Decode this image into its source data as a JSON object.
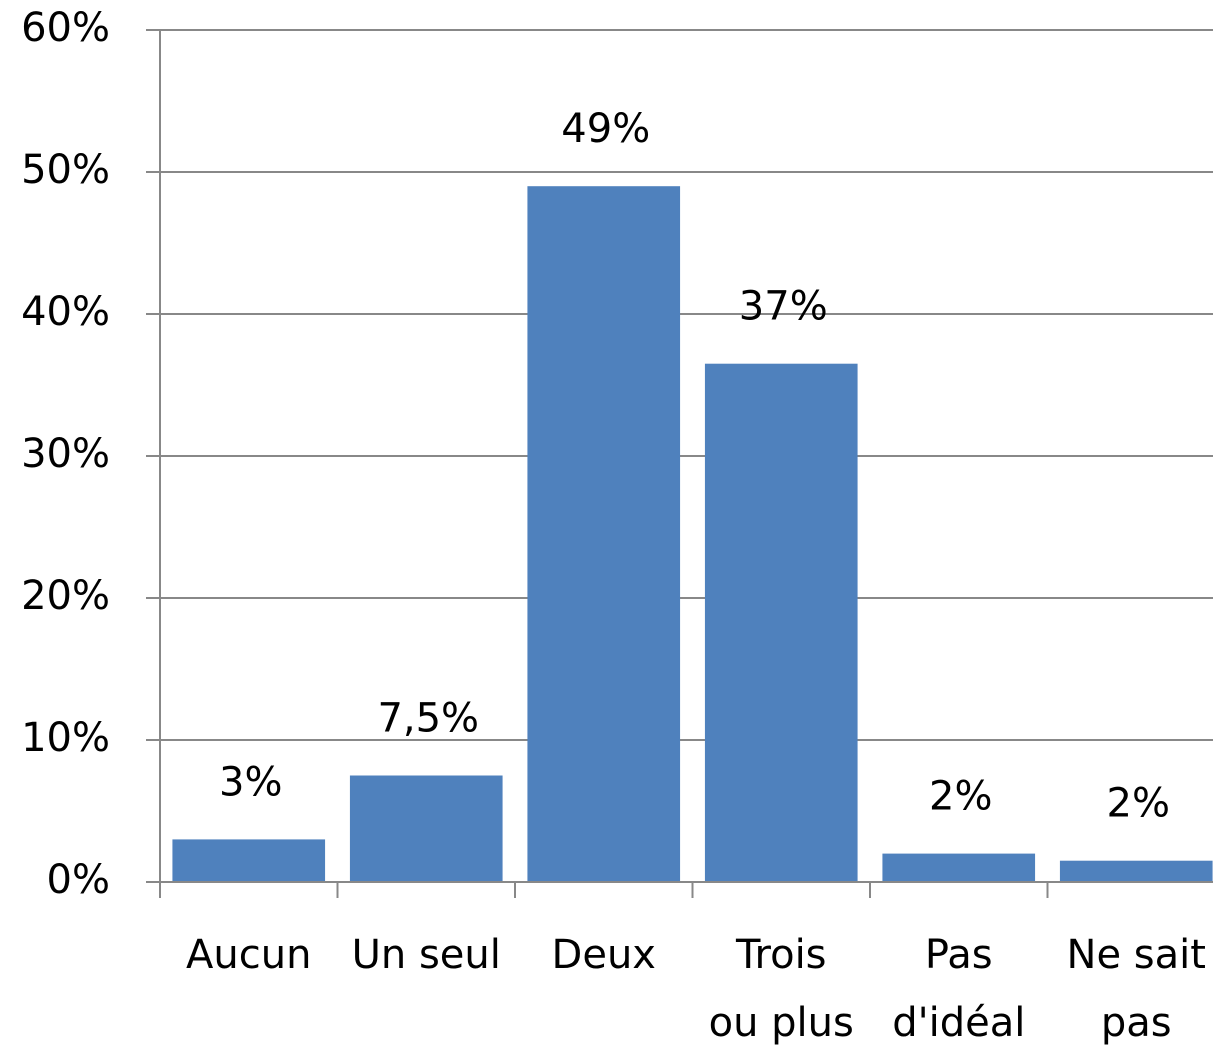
{
  "chart_data": {
    "type": "bar",
    "categories": [
      [
        "Aucun"
      ],
      [
        "Un seul"
      ],
      [
        "Deux"
      ],
      [
        "Trois",
        "ou plus"
      ],
      [
        "Pas",
        "d'idéal"
      ],
      [
        "Ne sait",
        "pas"
      ]
    ],
    "values": [
      3,
      7.5,
      49,
      36.5,
      2,
      1.5
    ],
    "value_labels": [
      "3%",
      "7,5%",
      "49%",
      "37%",
      "2%",
      "2%"
    ],
    "color": "#4f81bd",
    "ylim": [
      0,
      60
    ],
    "yticks": [
      {
        "value": 0,
        "label": "0%"
      },
      {
        "value": 10,
        "label": "10%"
      },
      {
        "value": 20,
        "label": "20%"
      },
      {
        "value": 30,
        "label": "30%"
      },
      {
        "value": 40,
        "label": "40%"
      },
      {
        "value": 50,
        "label": "50%"
      },
      {
        "value": 60,
        "label": "60%"
      }
    ],
    "grid": true
  }
}
